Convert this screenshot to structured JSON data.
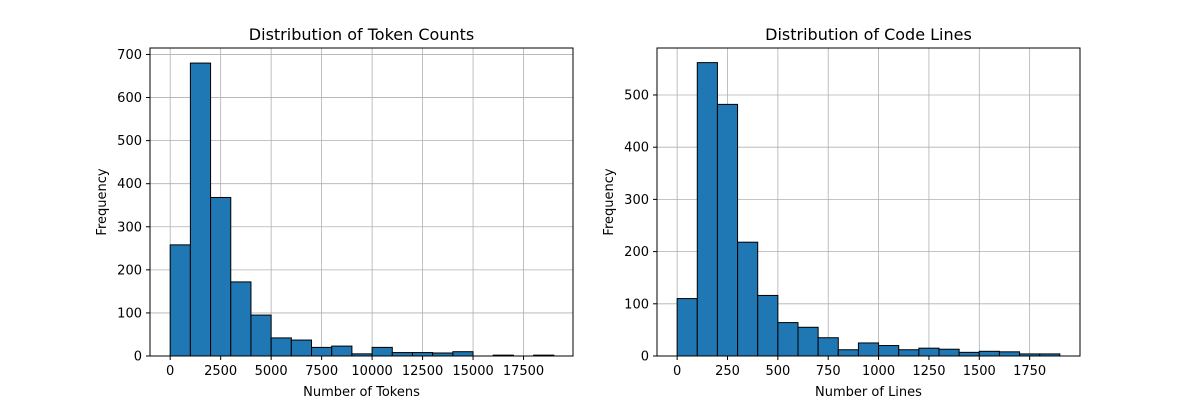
{
  "chart_data": [
    {
      "type": "bar",
      "title": "Distribution of Token Counts",
      "xlabel": "Number of Tokens",
      "ylabel": "Frequency",
      "xlim": [
        -1000,
        19950
      ],
      "ylim": [
        0,
        715
      ],
      "xticks": [
        0,
        2500,
        5000,
        7500,
        10000,
        12500,
        15000,
        17500
      ],
      "yticks": [
        0,
        100,
        200,
        300,
        400,
        500,
        600,
        700
      ],
      "grid": true,
      "bar_color": "#1f77b4",
      "edge_color": "#000000",
      "bin_edges": [
        0,
        1000,
        2000,
        3000,
        4000,
        5000,
        6000,
        7000,
        8000,
        9000,
        10000,
        11000,
        12000,
        13000,
        14000,
        15000,
        16000,
        17000,
        18000,
        19000
      ],
      "values": [
        258,
        680,
        368,
        172,
        95,
        42,
        37,
        20,
        23,
        5,
        20,
        8,
        8,
        7,
        10,
        0,
        2,
        0,
        2
      ]
    },
    {
      "type": "bar",
      "title": "Distribution of Code Lines",
      "xlabel": "Number of Lines",
      "ylabel": "Frequency",
      "xlim": [
        -100,
        2000
      ],
      "ylim": [
        0,
        590
      ],
      "xticks": [
        0,
        250,
        500,
        750,
        1000,
        1250,
        1500,
        1750
      ],
      "yticks": [
        0,
        100,
        200,
        300,
        400,
        500
      ],
      "grid": true,
      "bar_color": "#1f77b4",
      "edge_color": "#000000",
      "bin_edges": [
        0,
        100,
        200,
        300,
        400,
        500,
        600,
        700,
        800,
        900,
        1000,
        1100,
        1200,
        1300,
        1400,
        1500,
        1600,
        1700,
        1800,
        1900
      ],
      "values": [
        110,
        562,
        482,
        218,
        116,
        64,
        55,
        35,
        12,
        25,
        20,
        12,
        15,
        13,
        7,
        9,
        8,
        4,
        4
      ]
    }
  ]
}
